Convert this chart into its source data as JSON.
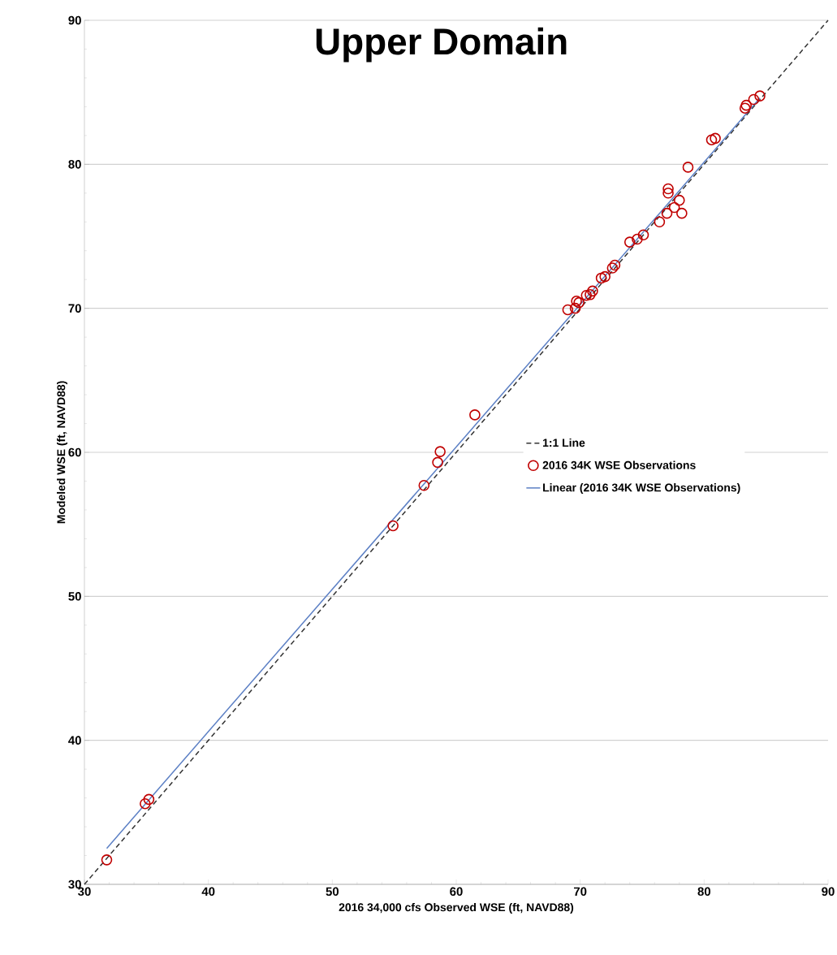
{
  "chart_data": {
    "type": "scatter",
    "title": "Upper Domain",
    "xlabel": "2016 34,000 cfs Observed WSE (ft, NAVD88)",
    "ylabel": "Modeled WSE (ft, NAVD88)",
    "xlim": [
      30,
      90
    ],
    "ylim": [
      30,
      90
    ],
    "xticks": [
      30,
      40,
      50,
      60,
      70,
      80,
      90
    ],
    "yticks": [
      30,
      40,
      50,
      60,
      70,
      80,
      90
    ],
    "grid": "y",
    "legend": "right",
    "series": [
      {
        "name": "1:1 Line",
        "type": "line",
        "color": "#333333",
        "line_style": "dashed",
        "marker": "none",
        "x": [
          30,
          90
        ],
        "values": [
          30,
          90
        ]
      },
      {
        "name": "2016 34K WSE Observations",
        "color": "#c00000",
        "marker": "circle",
        "x": [
          31.8,
          34.9,
          35.2,
          54.9,
          57.4,
          58.5,
          58.7,
          61.5,
          69.0,
          69.6,
          69.9,
          69.7,
          70.5,
          71.0,
          70.8,
          71.7,
          72.0,
          72.6,
          72.8,
          74.0,
          74.6,
          75.1,
          76.4,
          77.0,
          77.6,
          78.0,
          78.2,
          77.1,
          77.1,
          78.7,
          80.6,
          80.9,
          83.3,
          83.4,
          84.0,
          84.5
        ],
        "values": [
          31.7,
          35.6,
          35.9,
          54.9,
          57.7,
          59.3,
          60.05,
          62.6,
          69.9,
          70.0,
          70.4,
          70.5,
          70.9,
          71.2,
          70.95,
          72.1,
          72.2,
          72.8,
          73.0,
          74.6,
          74.8,
          75.1,
          76.0,
          76.6,
          77.0,
          77.5,
          76.6,
          78.0,
          78.3,
          79.8,
          81.7,
          81.8,
          83.9,
          84.1,
          84.5,
          84.75
        ]
      },
      {
        "name": "Linear (2016 34K WSE Observations)",
        "type": "line",
        "color": "#5b7fc4",
        "line_style": "solid",
        "marker": "none",
        "x": [
          31.8,
          84.5
        ],
        "values": [
          32.5,
          84.6
        ]
      }
    ]
  }
}
